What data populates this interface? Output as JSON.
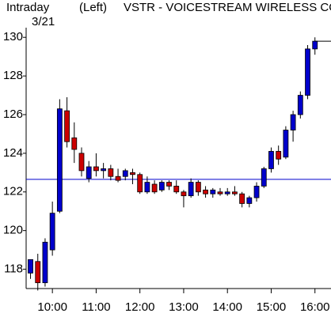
{
  "chart_data": {
    "type": "candlestick",
    "label": "Intraday",
    "date": "3/21",
    "axis_side": "(Left)",
    "title": "VSTR - VOICESTREAM WIRELESS CORP",
    "x": [
      "09:30",
      "09:40",
      "09:50",
      "10:00",
      "10:10",
      "10:20",
      "10:30",
      "10:40",
      "10:50",
      "11:00",
      "11:10",
      "11:20",
      "11:30",
      "11:40",
      "11:50",
      "12:00",
      "12:10",
      "12:20",
      "12:30",
      "12:40",
      "12:50",
      "13:00",
      "13:10",
      "13:20",
      "13:30",
      "13:40",
      "13:50",
      "14:00",
      "14:10",
      "14:20",
      "14:30",
      "14:40",
      "14:50",
      "15:00",
      "15:10",
      "15:20",
      "15:30",
      "15:40",
      "15:50",
      "16:00"
    ],
    "open": [
      117.8,
      118.4,
      117.3,
      119.0,
      121.0,
      126.2,
      124.8,
      124.0,
      122.7,
      123.3,
      123.1,
      123.2,
      122.8,
      122.8,
      123.0,
      122.9,
      122.0,
      122.4,
      122.1,
      122.5,
      122.3,
      122.0,
      121.8,
      122.5,
      122.1,
      121.9,
      122.0,
      121.9,
      122.0,
      121.9,
      121.4,
      121.7,
      122.3,
      123.2,
      124.1,
      123.8,
      125.2,
      126.0,
      127.0,
      129.4
    ],
    "high": [
      118.5,
      118.8,
      119.6,
      121.5,
      126.8,
      126.9,
      125.6,
      124.3,
      123.6,
      124.0,
      123.5,
      123.4,
      123.2,
      123.2,
      123.2,
      123.0,
      122.8,
      122.6,
      122.6,
      122.6,
      122.6,
      122.1,
      122.7,
      122.6,
      122.3,
      122.2,
      122.2,
      122.2,
      122.3,
      122.0,
      121.8,
      122.5,
      123.3,
      124.3,
      124.4,
      125.4,
      126.2,
      127.2,
      129.6,
      130.0
    ],
    "low": [
      117.5,
      116.9,
      117.1,
      118.7,
      120.9,
      124.3,
      123.5,
      122.8,
      122.5,
      122.8,
      122.7,
      122.6,
      122.5,
      122.6,
      122.4,
      121.9,
      121.9,
      121.9,
      122.0,
      122.1,
      121.9,
      121.2,
      121.7,
      121.8,
      121.7,
      121.7,
      121.8,
      121.8,
      121.8,
      121.2,
      121.2,
      121.5,
      122.2,
      123.0,
      123.4,
      123.7,
      124.6,
      125.8,
      126.8,
      129.1
    ],
    "close": [
      118.5,
      117.3,
      119.4,
      120.9,
      126.3,
      124.6,
      124.2,
      123.1,
      123.3,
      123.1,
      123.2,
      122.8,
      122.6,
      123.1,
      122.9,
      122.0,
      122.5,
      122.0,
      122.5,
      122.3,
      122.0,
      121.8,
      122.5,
      122.0,
      121.9,
      122.1,
      121.9,
      122.0,
      121.9,
      121.4,
      121.7,
      122.3,
      123.2,
      124.1,
      123.7,
      125.2,
      126.0,
      127.0,
      129.4,
      129.8
    ],
    "up_color": "#0000cc",
    "down_color": "#cc0000",
    "reference_line": 122.65,
    "reference_color": "#0000cc",
    "ylim": [
      117,
      130.5
    ],
    "yticks": [
      118,
      120,
      122,
      124,
      126,
      128,
      130
    ],
    "xlim": [
      "09:24",
      "16:22"
    ],
    "xticks": [
      "10:00",
      "11:00",
      "12:00",
      "13:00",
      "14:00",
      "15:00",
      "16:00"
    ]
  }
}
